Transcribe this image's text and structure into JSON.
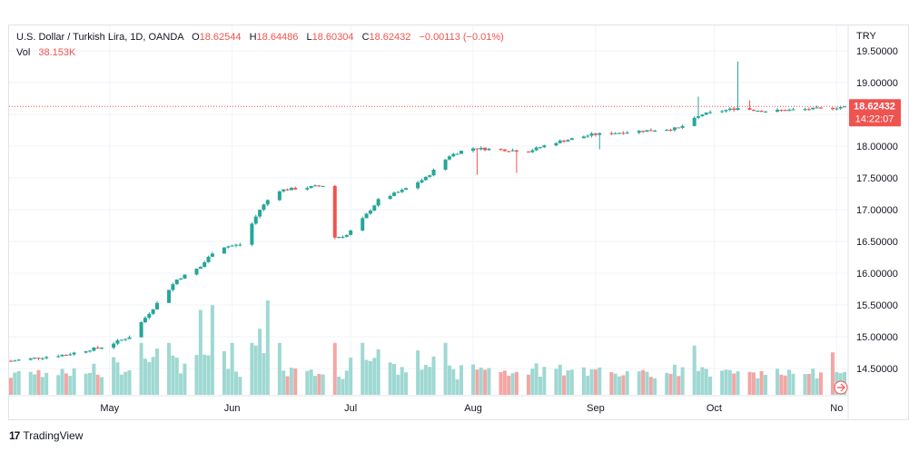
{
  "legend": {
    "symbol_title": "U.S. Dollar / Turkish Lira, 1D, OANDA",
    "open_key": "O",
    "open": "18.62544",
    "high_key": "H",
    "high": "18.64486",
    "low_key": "L",
    "low": "18.60304",
    "close_key": "C",
    "close": "18.62432",
    "change": "−0.00113 (−0.01%)",
    "vol_key": "Vol",
    "vol": "38.153K"
  },
  "currency": "TRY",
  "price_tag": {
    "price": "18.62432",
    "countdown": "14:22:07"
  },
  "branding": {
    "logo_mark": "17",
    "name": "TradingView"
  },
  "colors": {
    "up": "#26a69a",
    "down": "#ef5350",
    "vol_up": "#9fd8d2",
    "vol_down": "#f3a6a4",
    "grid": "#f0f3fa",
    "axis_text": "#131722"
  },
  "chart_data": {
    "type": "candlestick",
    "title": "U.S. Dollar / Turkish Lira, 1D, OANDA",
    "y_ticks": [
      "14.50000",
      "15.00000",
      "15.50000",
      "16.00000",
      "16.50000",
      "17.00000",
      "17.50000",
      "18.00000",
      "18.50000",
      "19.00000",
      "19.50000"
    ],
    "x_ticks": [
      {
        "label": "May",
        "date": "2022-05-01"
      },
      {
        "label": "Jun",
        "date": "2022-06-01"
      },
      {
        "label": "Jul",
        "date": "2022-07-01"
      },
      {
        "label": "Aug",
        "date": "2022-08-01"
      },
      {
        "label": "Sep",
        "date": "2022-09-01"
      },
      {
        "label": "Oct",
        "date": "2022-10-01"
      },
      {
        "label": "No",
        "date": "2022-11-01"
      }
    ],
    "ylim": [
      14.1,
      19.6
    ],
    "start_date": "2022-04-06",
    "end_date": "2022-11-03",
    "last_price": 18.62432,
    "keyframes": [
      [
        "2022-04-06",
        14.62
      ],
      [
        "2022-04-20",
        14.72
      ],
      [
        "2022-04-30",
        14.85
      ],
      [
        "2022-05-06",
        15.0
      ],
      [
        "2022-05-12",
        15.45
      ],
      [
        "2022-05-18",
        15.9
      ],
      [
        "2022-05-24",
        16.1
      ],
      [
        "2022-05-28",
        16.4
      ],
      [
        "2022-06-03",
        16.45
      ],
      [
        "2022-06-08",
        17.0
      ],
      [
        "2022-06-12",
        17.3
      ],
      [
        "2022-06-20",
        17.35
      ],
      [
        "2022-06-24",
        17.38
      ],
      [
        "2022-06-26",
        16.55
      ],
      [
        "2022-06-30",
        16.6
      ],
      [
        "2022-07-04",
        16.85
      ],
      [
        "2022-07-08",
        17.15
      ],
      [
        "2022-07-14",
        17.3
      ],
      [
        "2022-07-20",
        17.5
      ],
      [
        "2022-07-26",
        17.85
      ],
      [
        "2022-07-31",
        17.97
      ],
      [
        "2022-08-15",
        17.92
      ],
      [
        "2022-08-21",
        18.05
      ],
      [
        "2022-08-31",
        18.18
      ],
      [
        "2022-09-15",
        18.25
      ],
      [
        "2022-09-22",
        18.28
      ],
      [
        "2022-09-28",
        18.5
      ],
      [
        "2022-10-07",
        18.6
      ],
      [
        "2022-10-14",
        18.55
      ],
      [
        "2022-10-31",
        18.6
      ],
      [
        "2022-11-03",
        18.625
      ]
    ],
    "wicks": [
      {
        "date": "2022-06-11",
        "high": 17.55
      },
      {
        "date": "2022-06-26",
        "low": 16.1
      },
      {
        "date": "2022-05-29",
        "low": 16.05
      },
      {
        "date": "2022-08-02",
        "low": 17.55
      },
      {
        "date": "2022-08-12",
        "low": 17.58
      },
      {
        "date": "2022-09-02",
        "low": 17.95
      },
      {
        "date": "2022-09-27",
        "high": 18.78
      },
      {
        "date": "2022-10-07",
        "high": 19.33
      },
      {
        "date": "2022-10-10",
        "high": 18.72
      }
    ],
    "volume_spikes": [
      {
        "date": "2022-05-24",
        "scale": 0.9
      },
      {
        "date": "2022-05-27",
        "scale": 0.95
      },
      {
        "date": "2022-06-10",
        "scale": 1.0
      },
      {
        "date": "2022-06-08",
        "scale": 0.7
      },
      {
        "date": "2022-05-21",
        "scale": 0.75
      },
      {
        "date": "2022-06-01",
        "scale": 0.55
      },
      {
        "date": "2022-10-31",
        "scale": 0.45
      }
    ]
  }
}
